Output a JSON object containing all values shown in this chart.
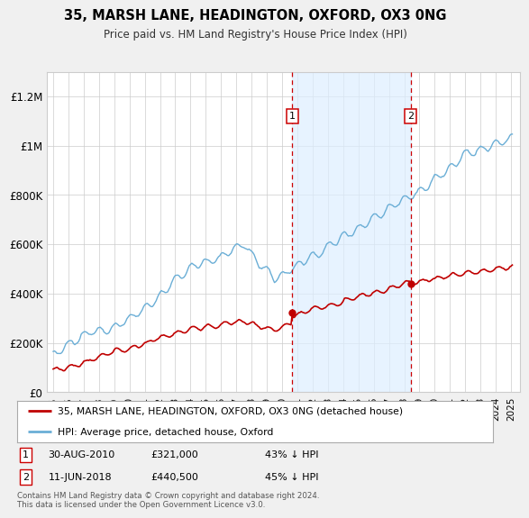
{
  "title": "35, MARSH LANE, HEADINGTON, OXFORD, OX3 0NG",
  "subtitle": "Price paid vs. HM Land Registry's House Price Index (HPI)",
  "yticks": [
    0,
    200000,
    400000,
    600000,
    800000,
    1000000,
    1200000
  ],
  "ytick_labels": [
    "£0",
    "£200K",
    "£400K",
    "£600K",
    "£800K",
    "£1M",
    "£1.2M"
  ],
  "hpi_line_color": "#6aaed6",
  "price_color": "#c00000",
  "shade_color": "#ddeeff",
  "legend_line1": "35, MARSH LANE, HEADINGTON, OXFORD, OX3 0NG (detached house)",
  "legend_line2": "HPI: Average price, detached house, Oxford",
  "footnote": "Contains HM Land Registry data © Crown copyright and database right 2024.\nThis data is licensed under the Open Government Licence v3.0.",
  "fig_bg_color": "#f0f0f0",
  "plot_bg_color": "#ffffff",
  "sale1_year": 2010.667,
  "sale1_price": 321000,
  "sale2_year": 2018.417,
  "sale2_price": 440500
}
